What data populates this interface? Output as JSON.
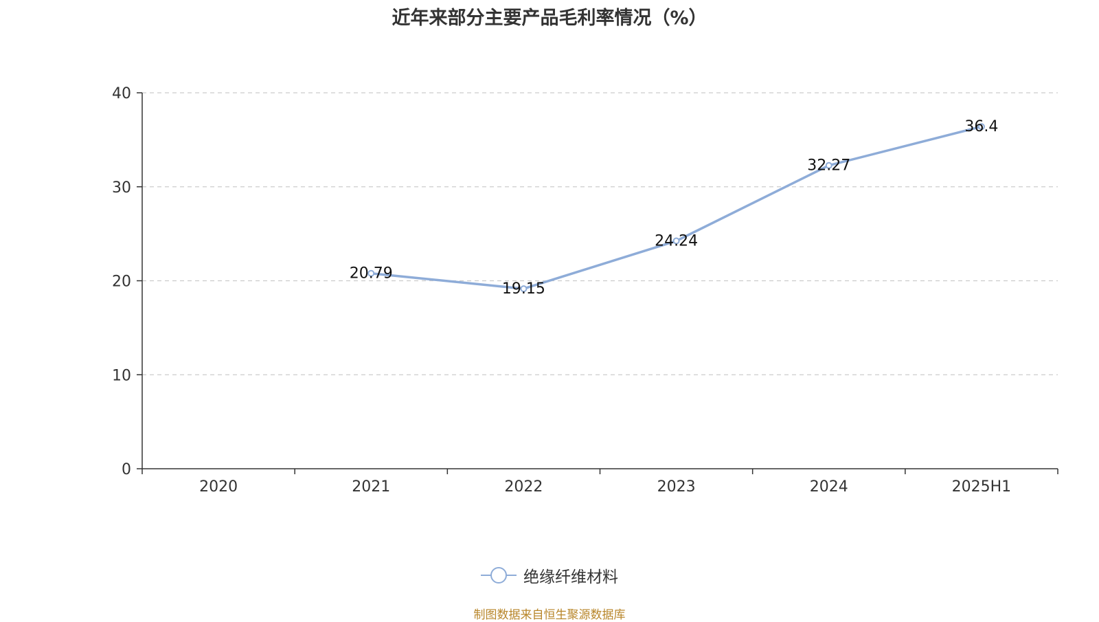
{
  "title": "近年来部分主要产品毛利率情况（%）",
  "source": "制图数据来自恒生聚源数据库",
  "colors": {
    "series": "#8eacd8",
    "axis": "#333333",
    "grid": "#cccccc",
    "text": "#333333",
    "source": "#b8862a"
  },
  "chart_data": {
    "type": "line",
    "title": "近年来部分主要产品毛利率情况（%）",
    "categories": [
      "2020",
      "2021",
      "2022",
      "2023",
      "2024",
      "2025H1"
    ],
    "series": [
      {
        "name": "绝缘纤维材料",
        "values": [
          null,
          20.79,
          19.15,
          24.24,
          32.27,
          36.4
        ],
        "labels": [
          "",
          "20.79",
          "19.15",
          "24.24",
          "32.27",
          "36.4"
        ]
      }
    ],
    "ylim": [
      0,
      40
    ],
    "yticks": [
      "0",
      "10",
      "20",
      "30",
      "40"
    ],
    "grid": true,
    "legend": "bottom-center"
  }
}
